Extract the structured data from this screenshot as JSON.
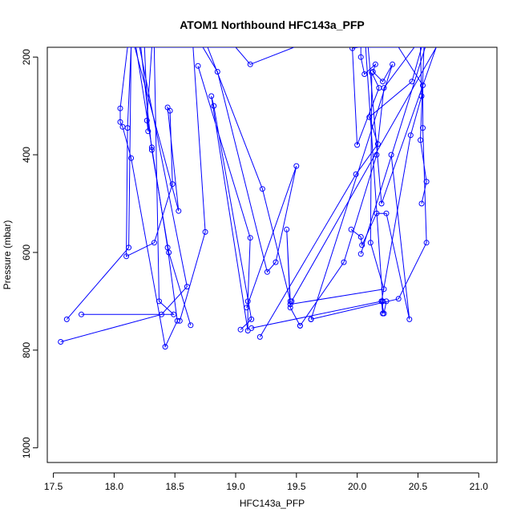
{
  "chart_data": {
    "type": "line",
    "title": "ATOM1 Northbound HFC143a_PFP",
    "xlabel": "HFC143a_PFP",
    "ylabel": "Pressure (mbar)",
    "xlim": [
      17.45,
      21.15
    ],
    "ylim": [
      1030,
      180
    ],
    "y_reversed": true,
    "x_ticks": [
      "17.5",
      "18.0",
      "18.5",
      "19.0",
      "19.5",
      "20.0",
      "20.5",
      "21.0"
    ],
    "y_ticks": [
      "200",
      "400",
      "600",
      "800",
      "1000"
    ],
    "line_color": "#0000ff",
    "marker": "open-circle",
    "series": [
      {
        "x": [
          17.56,
          18.39,
          18.6,
          18.21,
          18.1
        ],
        "y": [
          783,
          727,
          670,
          180,
          180
        ]
      },
      {
        "x": [
          17.61,
          18.12,
          18.14,
          18.11,
          18.05,
          18.05,
          18.07,
          18.14,
          18.42,
          18.52,
          18.44,
          18.31,
          18.18,
          18.11
        ],
        "y": [
          737,
          590,
          180,
          180,
          305,
          333,
          343,
          407,
          793,
          740,
          590,
          385,
          180,
          180
        ]
      },
      {
        "x": [
          17.73,
          18.49,
          18.37,
          18.33,
          18.14,
          18.11,
          18.1,
          18.33,
          18.48,
          18.46,
          18.44,
          18.53,
          18.17,
          18.13
        ],
        "y": [
          727,
          727,
          700,
          180,
          180,
          345,
          608,
          580,
          460,
          310,
          303,
          515,
          180,
          180
        ]
      },
      {
        "x": [
          18.54,
          18.75,
          18.65,
          18.31,
          18.27,
          18.28,
          18.25,
          18.21
        ],
        "y": [
          740,
          558,
          180,
          180,
          330,
          352,
          180,
          180
        ]
      },
      {
        "x": [
          18.63,
          18.45,
          18.31,
          18.22,
          18.18
        ],
        "y": [
          749,
          600,
          390,
          180,
          180
        ]
      },
      {
        "x": [
          18.69,
          19.12,
          19.1,
          19.1,
          18.8,
          18.82,
          19.13,
          19.04
        ],
        "y": [
          218,
          570,
          700,
          760,
          280,
          300,
          737,
          758
        ]
      },
      {
        "x": [
          18.77,
          19.22,
          19.45,
          19.42,
          19.45,
          19.53
        ],
        "y": [
          180,
          470,
          700,
          553,
          713,
          750
        ]
      },
      {
        "x": [
          19.09,
          19.5,
          19.33,
          19.26,
          18.85,
          18.73
        ],
        "y": [
          713,
          423,
          620,
          640,
          230,
          180
        ]
      },
      {
        "x": [
          19.13,
          20.2,
          20.21,
          20.21,
          20.07
        ],
        "y": [
          755,
          700,
          725,
          700,
          180
        ]
      },
      {
        "x": [
          19.2,
          19.99,
          20.17,
          20.1,
          20.45,
          20.53
        ],
        "y": [
          773,
          440,
          378,
          323,
          250,
          180
        ]
      },
      {
        "x": [
          19.45,
          20.22,
          20.11,
          20.12,
          20.18,
          20.0,
          19.96,
          20.01
        ],
        "y": [
          706,
          675,
          580,
          232,
          263,
          380,
          182,
          180
        ]
      },
      {
        "x": [
          19.53,
          19.89,
          20.16,
          20.22,
          20.47,
          20.55,
          20.52,
          20.57,
          20.53
        ],
        "y": [
          750,
          620,
          400,
          263,
          180,
          180,
          370,
          455,
          500
        ]
      },
      {
        "x": [
          19.62,
          20.34,
          20.57,
          20.54,
          20.54,
          20.34,
          20.0
        ],
        "y": [
          737,
          695,
          580,
          345,
          258,
          180,
          180
        ]
      },
      {
        "x": [
          19.62,
          20.29,
          20.21,
          20.13,
          20.15,
          20.06,
          20.03,
          20.03
        ],
        "y": [
          737,
          215,
          250,
          230,
          215,
          235,
          200,
          180
        ]
      },
      {
        "x": [
          19.95,
          20.03,
          20.04,
          20.16,
          20.24,
          20.43,
          20.28
        ],
        "y": [
          553,
          568,
          585,
          520,
          520,
          737,
          400
        ]
      },
      {
        "x": [
          20.03,
          20.56,
          20.52,
          20.53,
          20.44,
          20.2,
          20.22,
          20.24
        ],
        "y": [
          603,
          180,
          180,
          280,
          360,
          700,
          725,
          700
        ]
      },
      {
        "x": [
          19.46,
          20.65,
          20.2,
          20.09
        ],
        "y": [
          700,
          180,
          500,
          180
        ]
      },
      {
        "x": [
          18.62,
          19.0,
          19.12,
          19.48
        ],
        "y": [
          180,
          180,
          215,
          180
        ]
      }
    ]
  }
}
